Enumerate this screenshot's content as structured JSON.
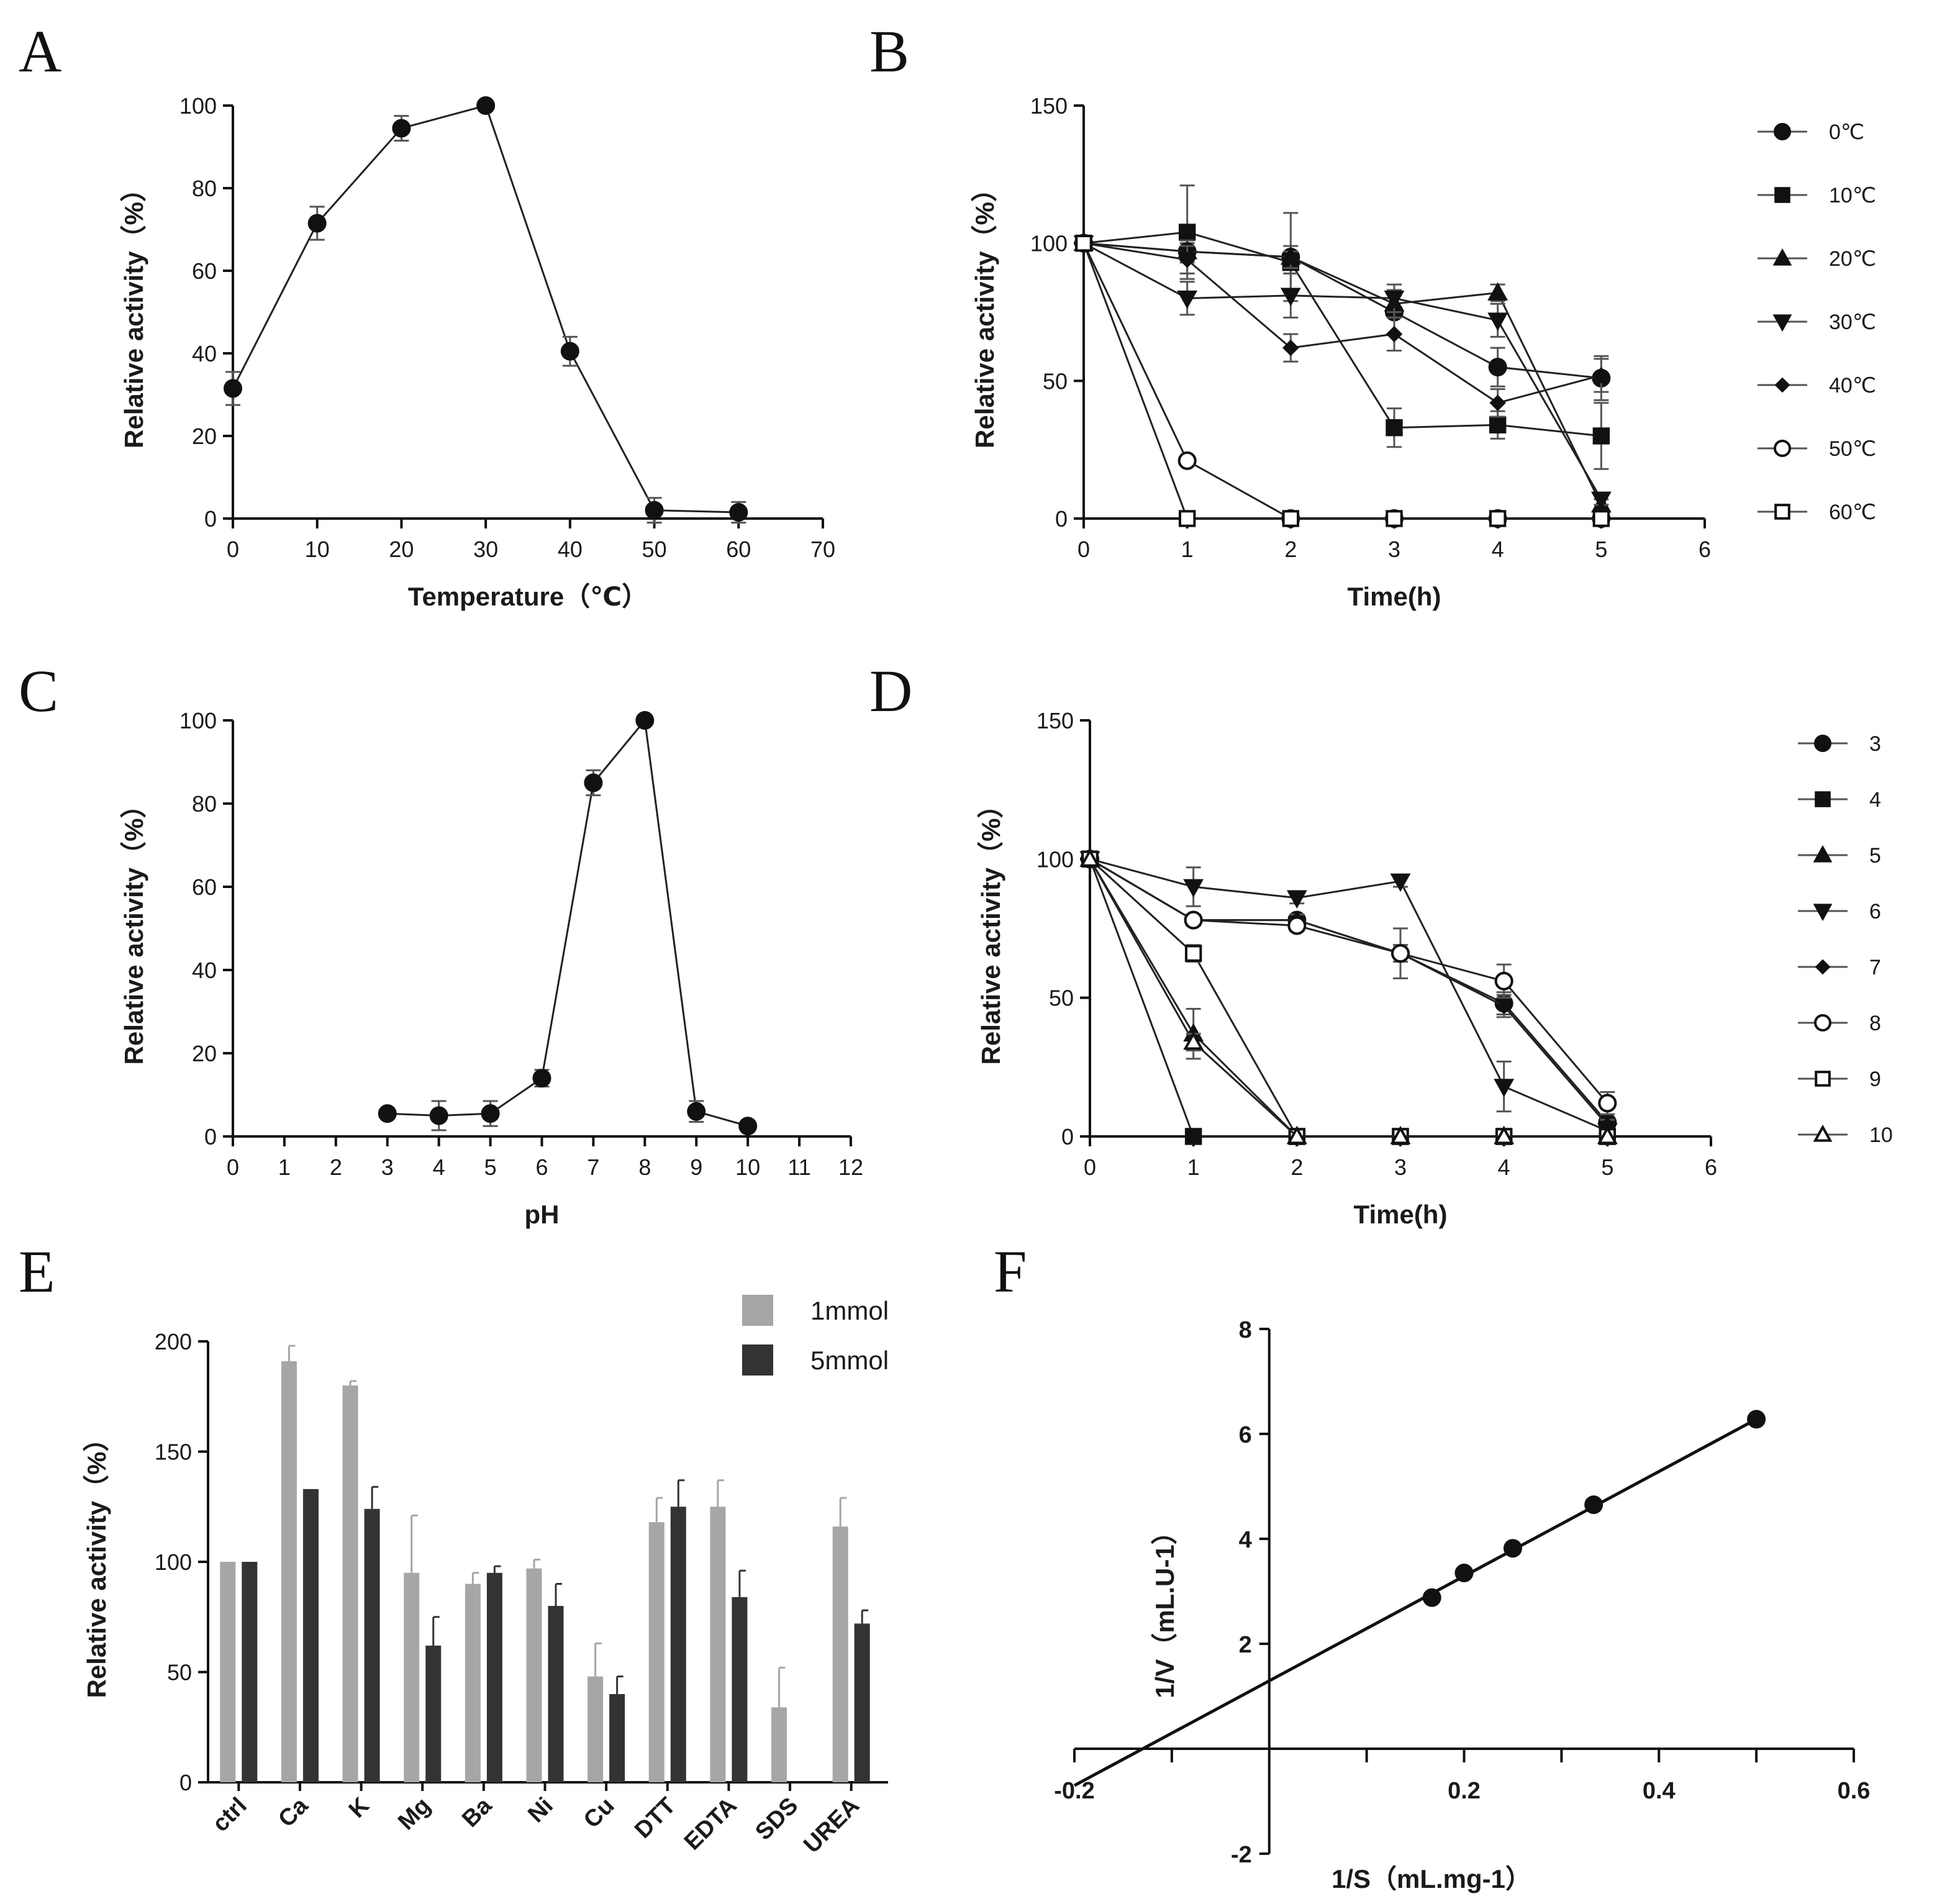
{
  "colors": {
    "ink": "#111111",
    "bar1": "#a6a6a6",
    "bar2": "#333333",
    "legendLine": "#555555"
  },
  "chart_data": [
    {
      "panel": "A",
      "type": "line",
      "xlabel": "Temperature（℃）",
      "ylabel": "Relative activity（%）",
      "xlim": [
        0,
        70
      ],
      "ylim": [
        0,
        100
      ],
      "xticks": [
        "0",
        "10",
        "20",
        "30",
        "40",
        "50",
        "60",
        "70"
      ],
      "yticks": [
        "0",
        "20",
        "40",
        "60",
        "80",
        "100"
      ],
      "series": [
        {
          "name": "activity",
          "marker": "circle",
          "x": [
            0,
            10,
            20,
            30,
            40,
            50,
            60
          ],
          "y": [
            31.5,
            71.5,
            94.5,
            100,
            40.5,
            2,
            1.5
          ],
          "err": [
            4,
            4,
            3,
            0,
            3.5,
            3,
            2.5
          ]
        }
      ]
    },
    {
      "panel": "B",
      "type": "line",
      "xlabel": "Time(h)",
      "ylabel": "Relative activity（%）",
      "xlim": [
        0,
        6
      ],
      "ylim": [
        0,
        150
      ],
      "xticks": [
        "0",
        "1",
        "2",
        "3",
        "4",
        "5",
        "6"
      ],
      "yticks": [
        "0",
        "50",
        "100",
        "150"
      ],
      "series": [
        {
          "name": "0℃",
          "marker": "circle",
          "x": [
            0,
            1,
            2,
            3,
            4,
            5
          ],
          "y": [
            100,
            97,
            95,
            75,
            55,
            51
          ],
          "err": [
            0,
            3,
            16,
            8,
            7,
            8
          ]
        },
        {
          "name": "10℃",
          "marker": "square",
          "x": [
            0,
            1,
            2,
            3,
            4,
            5
          ],
          "y": [
            100,
            104,
            93,
            33,
            34,
            30
          ],
          "err": [
            0,
            17,
            4,
            7,
            5,
            12
          ]
        },
        {
          "name": "20℃",
          "marker": "triangle-up",
          "x": [
            0,
            1,
            2,
            3,
            4,
            5
          ],
          "y": [
            100,
            97,
            95,
            78,
            82,
            5
          ],
          "err": [
            0,
            4,
            4,
            5,
            3,
            2
          ]
        },
        {
          "name": "30℃",
          "marker": "triangle-down",
          "x": [
            0,
            1,
            2,
            3,
            4,
            5
          ],
          "y": [
            100,
            80,
            81,
            80,
            72,
            7
          ],
          "err": [
            0,
            6,
            8,
            5,
            6,
            2
          ]
        },
        {
          "name": "40℃",
          "marker": "diamond",
          "x": [
            0,
            1,
            2,
            3,
            4,
            5
          ],
          "y": [
            100,
            94,
            62,
            67,
            42,
            52
          ],
          "err": [
            0,
            5,
            5,
            6,
            5,
            6
          ]
        },
        {
          "name": "50℃",
          "marker": "circle-open",
          "x": [
            0,
            1,
            2,
            3,
            4,
            5
          ],
          "y": [
            100,
            21,
            0,
            0,
            0,
            0
          ],
          "err": [
            0,
            0,
            0,
            0,
            0,
            0
          ]
        },
        {
          "name": "60℃",
          "marker": "square-open",
          "x": [
            0,
            1,
            2,
            3,
            4,
            5
          ],
          "y": [
            100,
            0,
            0,
            0,
            0,
            0
          ],
          "err": [
            0,
            0,
            0,
            0,
            0,
            0
          ]
        }
      ]
    },
    {
      "panel": "C",
      "type": "line",
      "xlabel": "pH",
      "ylabel": "Relative activity（%）",
      "xlim": [
        0,
        12
      ],
      "ylim": [
        0,
        100
      ],
      "xticks": [
        "0",
        "1",
        "2",
        "3",
        "4",
        "5",
        "6",
        "7",
        "8",
        "9",
        "10",
        "11",
        "12"
      ],
      "yticks": [
        "0",
        "20",
        "40",
        "60",
        "80",
        "100"
      ],
      "series": [
        {
          "name": "activity",
          "marker": "circle",
          "x": [
            3,
            4,
            5,
            6,
            7,
            8,
            9,
            10
          ],
          "y": [
            5.5,
            5,
            5.5,
            14,
            85,
            100,
            6,
            2.5
          ],
          "err": [
            0,
            3.5,
            3,
            2,
            3,
            0,
            2.5,
            0
          ]
        }
      ]
    },
    {
      "panel": "D",
      "type": "line",
      "xlabel": "Time(h)",
      "ylabel": "Relative activity（%）",
      "xlim": [
        0,
        6
      ],
      "ylim": [
        0,
        150
      ],
      "xticks": [
        "0",
        "1",
        "2",
        "3",
        "4",
        "5",
        "6"
      ],
      "yticks": [
        "0",
        "50",
        "100",
        "150"
      ],
      "series": [
        {
          "name": "3",
          "marker": "circle",
          "x": [
            0,
            1,
            2,
            3,
            4,
            5
          ],
          "y": [
            100,
            78,
            78,
            66,
            48,
            5
          ],
          "err": [
            0,
            2,
            2,
            9,
            4,
            2
          ]
        },
        {
          "name": "4",
          "marker": "square",
          "x": [
            0,
            1,
            2,
            3,
            4,
            5
          ],
          "y": [
            100,
            0,
            0,
            0,
            0,
            0
          ],
          "err": [
            0,
            0,
            0,
            0,
            0,
            0
          ]
        },
        {
          "name": "5",
          "marker": "triangle-up",
          "x": [
            0,
            1,
            2,
            3,
            4,
            5
          ],
          "y": [
            100,
            37,
            0,
            0,
            0,
            0
          ],
          "err": [
            0,
            9,
            0,
            0,
            0,
            0
          ]
        },
        {
          "name": "6",
          "marker": "triangle-down",
          "x": [
            0,
            1,
            2,
            3,
            4,
            5
          ],
          "y": [
            100,
            90,
            86,
            92,
            18,
            2
          ],
          "err": [
            0,
            7,
            2,
            2,
            9,
            2
          ]
        },
        {
          "name": "7",
          "marker": "diamond",
          "x": [
            0,
            1,
            2,
            3,
            4,
            5
          ],
          "y": [
            100,
            78,
            78,
            66,
            47,
            4
          ],
          "err": [
            0,
            2,
            2,
            3,
            4,
            2
          ]
        },
        {
          "name": "8",
          "marker": "circle-open",
          "x": [
            0,
            1,
            2,
            3,
            4,
            5
          ],
          "y": [
            100,
            78,
            76,
            66,
            56,
            12
          ],
          "err": [
            0,
            2,
            2,
            3,
            6,
            4
          ]
        },
        {
          "name": "9",
          "marker": "square-open",
          "x": [
            0,
            1,
            2,
            3,
            4,
            5
          ],
          "y": [
            100,
            66,
            0,
            0,
            0,
            0
          ],
          "err": [
            0,
            3,
            0,
            0,
            0,
            0
          ]
        },
        {
          "name": "10",
          "marker": "triangle-up-open",
          "x": [
            0,
            1,
            2,
            3,
            4,
            5
          ],
          "y": [
            100,
            34,
            0,
            0,
            0,
            0
          ],
          "err": [
            0,
            3,
            0,
            0,
            0,
            0
          ]
        }
      ]
    },
    {
      "panel": "E",
      "type": "bar",
      "ylabel": "Relative activity（%）",
      "ylim": [
        0,
        200
      ],
      "yticks": [
        "0",
        "50",
        "100",
        "150",
        "200"
      ],
      "categories": [
        "ctrl",
        "Ca",
        "K",
        "Mg",
        "Ba",
        "Ni",
        "Cu",
        "DTT",
        "EDTA",
        "SDS",
        "UREA"
      ],
      "series": [
        {
          "name": "1mmol",
          "values": [
            100,
            191,
            180,
            95,
            90,
            97,
            48,
            118,
            125,
            34,
            116
          ],
          "err": [
            0,
            7,
            2,
            26,
            5,
            4,
            15,
            11,
            12,
            18,
            13
          ]
        },
        {
          "name": "5mmol",
          "values": [
            100,
            133,
            124,
            62,
            95,
            80,
            40,
            125,
            84,
            0,
            72
          ],
          "err": [
            0,
            0,
            10,
            13,
            3,
            10,
            8,
            12,
            12,
            0,
            6
          ]
        }
      ]
    },
    {
      "panel": "F",
      "type": "scatter",
      "xlabel": "1/S（mL.mg-1）",
      "ylabel": "1/V（mL.U-1）",
      "xlim": [
        -0.2,
        0.6
      ],
      "ylim": [
        -2,
        8
      ],
      "xticks": [
        "-0.2",
        "0.2",
        "0.4",
        "0.6"
      ],
      "yticks": [
        "-2",
        "2",
        "4",
        "6",
        "8"
      ],
      "x": [
        0.167,
        0.2,
        0.25,
        0.333,
        0.5
      ],
      "y": [
        2.88,
        3.35,
        3.82,
        4.65,
        6.28
      ],
      "fit": {
        "x": [
          -0.2,
          0.5
        ],
        "y": [
          -0.7,
          6.28
        ]
      }
    }
  ],
  "panels": {
    "A": "A",
    "B": "B",
    "C": "C",
    "D": "D",
    "E": "E",
    "F": "F"
  }
}
